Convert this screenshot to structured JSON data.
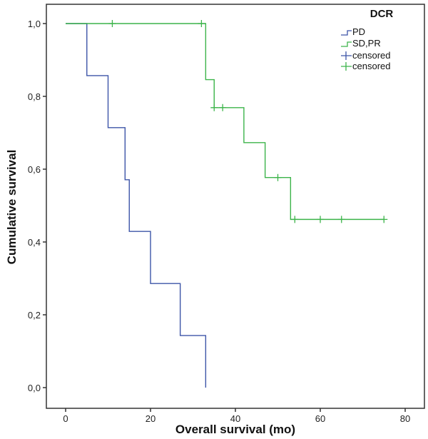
{
  "chart_data": {
    "type": "line",
    "subtype": "kaplan-meier",
    "xlabel": "Overall survival (mo)",
    "ylabel": "Cumulative survival",
    "xlim": [
      0,
      80
    ],
    "ylim": [
      0,
      1
    ],
    "xticks": [
      0,
      20,
      40,
      60,
      80
    ],
    "xtick_labels": [
      "0",
      "20",
      "40",
      "60",
      "80"
    ],
    "yticks": [
      0,
      0.2,
      0.4,
      0.6,
      0.8,
      1.0
    ],
    "ytick_labels": [
      "0,0",
      "0,2",
      "0,4",
      "0,6",
      "0,8",
      "1,0"
    ],
    "grid": false,
    "legend": {
      "title": "DCR",
      "placement": "top-right",
      "entries": [
        "PD",
        "SD,PR",
        "censored",
        "censored"
      ]
    },
    "series": [
      {
        "name": "PD",
        "color": "#3d55a8",
        "steps": [
          [
            0,
            1.0
          ],
          [
            5,
            0.857
          ],
          [
            10,
            0.714
          ],
          [
            14,
            0.571
          ],
          [
            15,
            0.429
          ],
          [
            20,
            0.286
          ],
          [
            27,
            0.143
          ],
          [
            33,
            0.0
          ]
        ],
        "end": 33,
        "censored": []
      },
      {
        "name": "SD,PR",
        "color": "#3cb44a",
        "steps": [
          [
            0,
            1.0
          ],
          [
            33,
            0.846
          ],
          [
            35,
            0.769
          ],
          [
            42,
            0.673
          ],
          [
            47,
            0.577
          ],
          [
            53,
            0.462
          ]
        ],
        "end": 75,
        "censored": [
          [
            11,
            1.0
          ],
          [
            32,
            1.0
          ],
          [
            35,
            0.769
          ],
          [
            37,
            0.769
          ],
          [
            50,
            0.577
          ],
          [
            54,
            0.462
          ],
          [
            60,
            0.462
          ],
          [
            65,
            0.462
          ],
          [
            75,
            0.462
          ]
        ]
      }
    ]
  }
}
